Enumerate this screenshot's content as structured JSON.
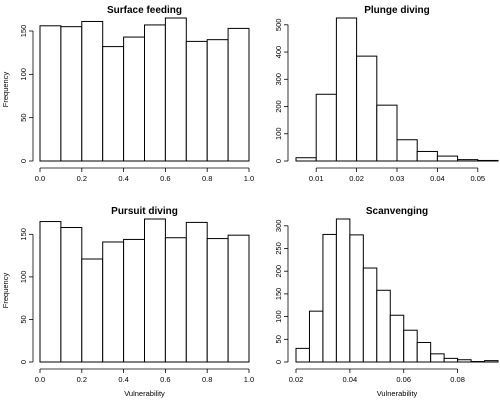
{
  "chart_data": [
    {
      "type": "bar",
      "title": "Surface feeding",
      "xlabel": "",
      "ylabel": "Frequency",
      "bin_edges": [
        0.0,
        0.1,
        0.2,
        0.3,
        0.4,
        0.5,
        0.6,
        0.7,
        0.8,
        0.9,
        1.0
      ],
      "values": [
        156,
        155,
        161,
        132,
        143,
        157,
        165,
        138,
        140,
        153
      ],
      "xlim": [
        0.0,
        1.0
      ],
      "ylim": [
        0,
        165
      ],
      "xticks": [
        0.0,
        0.2,
        0.4,
        0.6,
        0.8,
        1.0
      ],
      "xtick_labels": [
        "0.0",
        "0.2",
        "0.4",
        "0.6",
        "0.8",
        "1.0"
      ],
      "yticks": [
        0,
        50,
        100,
        150
      ],
      "ytick_labels": [
        "0",
        "50",
        "100",
        "150"
      ]
    },
    {
      "type": "bar",
      "title": "Plunge diving",
      "xlabel": "",
      "ylabel": "",
      "bin_edges": [
        0.005,
        0.01,
        0.015,
        0.02,
        0.025,
        0.03,
        0.035,
        0.04,
        0.045,
        0.05,
        0.055
      ],
      "values": [
        12,
        245,
        525,
        385,
        205,
        78,
        35,
        18,
        5,
        2
      ],
      "xlim": [
        0.005,
        0.055
      ],
      "ylim": [
        0,
        525
      ],
      "xticks": [
        0.01,
        0.02,
        0.03,
        0.04,
        0.05
      ],
      "xtick_labels": [
        "0.01",
        "0.02",
        "0.03",
        "0.04",
        "0.05"
      ],
      "yticks": [
        0,
        100,
        200,
        300,
        400,
        500
      ],
      "ytick_labels": [
        "0",
        "100",
        "200",
        "300",
        "400",
        "500"
      ]
    },
    {
      "type": "bar",
      "title": "Pursuit diving",
      "xlabel": "Vulnerability",
      "ylabel": "Frequency",
      "bin_edges": [
        0.0,
        0.1,
        0.2,
        0.3,
        0.4,
        0.5,
        0.6,
        0.7,
        0.8,
        0.9,
        1.0
      ],
      "values": [
        165,
        158,
        121,
        141,
        144,
        168,
        146,
        164,
        145,
        149
      ],
      "xlim": [
        0.0,
        1.0
      ],
      "ylim": [
        0,
        168
      ],
      "xticks": [
        0.0,
        0.2,
        0.4,
        0.6,
        0.8,
        1.0
      ],
      "xtick_labels": [
        "0.0",
        "0.2",
        "0.4",
        "0.6",
        "0.8",
        "1.0"
      ],
      "yticks": [
        0,
        50,
        100,
        150
      ],
      "ytick_labels": [
        "0",
        "50",
        "100",
        "150"
      ]
    },
    {
      "type": "bar",
      "title": "Scanvenging",
      "xlabel": "Vulnerability",
      "ylabel": "",
      "bin_edges": [
        0.02,
        0.025,
        0.03,
        0.035,
        0.04,
        0.045,
        0.05,
        0.055,
        0.06,
        0.065,
        0.07,
        0.075,
        0.08,
        0.085,
        0.09,
        0.095
      ],
      "values": [
        30,
        112,
        281,
        315,
        280,
        207,
        158,
        103,
        70,
        43,
        18,
        8,
        5,
        1,
        3
      ],
      "xlim": [
        0.02,
        0.095
      ],
      "ylim": [
        0,
        315
      ],
      "xticks": [
        0.02,
        0.04,
        0.06,
        0.08
      ],
      "xtick_labels": [
        "0.02",
        "0.04",
        "0.06",
        "0.08"
      ],
      "yticks": [
        0,
        50,
        100,
        150,
        200,
        250,
        300
      ],
      "ytick_labels": [
        "0",
        "50",
        "100",
        "150",
        "200",
        "250",
        "300"
      ]
    }
  ]
}
